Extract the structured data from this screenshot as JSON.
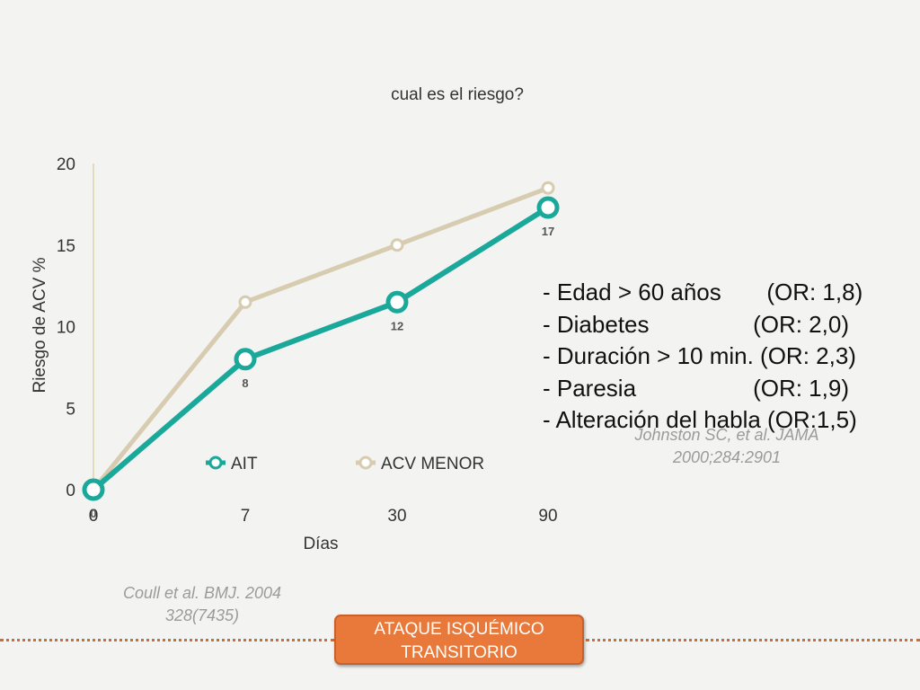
{
  "chart_data": {
    "type": "line",
    "title": "cual es el riesgo?",
    "xlabel": "Días",
    "ylabel": "Riesgo de ACV %",
    "categories": [
      "0",
      "7",
      "30",
      "90"
    ],
    "ylim": [
      0,
      20
    ],
    "yticks": [
      "0",
      "5",
      "10",
      "15",
      "20"
    ],
    "series": [
      {
        "name": "AIT",
        "values": [
          0,
          8,
          11.5,
          17.3
        ],
        "labels": [
          "0",
          "8",
          "12",
          "17"
        ],
        "color": "#19a89a"
      },
      {
        "name": "ACV MENOR",
        "values": [
          0,
          11.5,
          15,
          18.5
        ],
        "color": "#d8ccb0"
      }
    ],
    "legend": "bottom",
    "grid": false
  },
  "risk_factors": [
    "- Edad > 60 años       (OR: 1,8)",
    "- Diabetes                (OR: 2,0)",
    "- Duración > 10 min. (OR: 2,3)",
    "- Paresia                  (OR: 1,9)",
    "- Alteración del habla (OR:1,5)"
  ],
  "citations": {
    "johnston": [
      "Johnston SC, et al.  JAMA",
      "2000;284:2901"
    ],
    "coull": [
      "Coull et al. BMJ. 2004",
      "328(7435)"
    ]
  },
  "badge": {
    "line1": "ATAQUE ISQUÉMICO",
    "line2": "TRANSITORIO"
  }
}
